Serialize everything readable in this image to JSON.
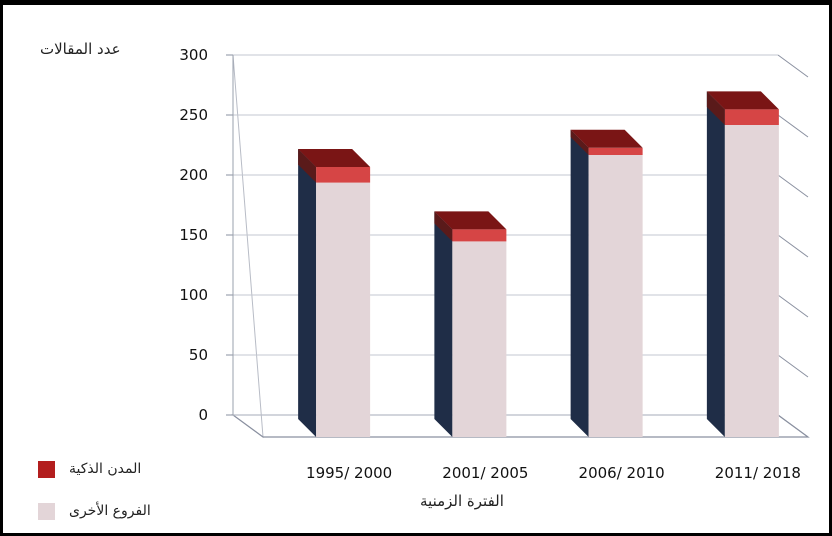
{
  "chart_data": {
    "type": "bar",
    "stacked": true,
    "categories": [
      "1995/ 2000",
      "2001/ 2005",
      "2006/ 2010",
      "2011/ 2018"
    ],
    "series": [
      {
        "name": "الفروع الأخرى",
        "values": [
          212,
          163,
          235,
          260
        ],
        "color": "#e3d5d8"
      },
      {
        "name": "المدن الذكية",
        "values": [
          13,
          10,
          6,
          13
        ],
        "color": "#c0392b"
      }
    ],
    "ylabel": "عدد المقالات",
    "xlabel": "الفترة الزمنية",
    "yticks": [
      0,
      50,
      100,
      150,
      200,
      250,
      300
    ],
    "ylim": [
      0,
      300
    ],
    "grid": true,
    "legend_position": "bottom-left"
  }
}
